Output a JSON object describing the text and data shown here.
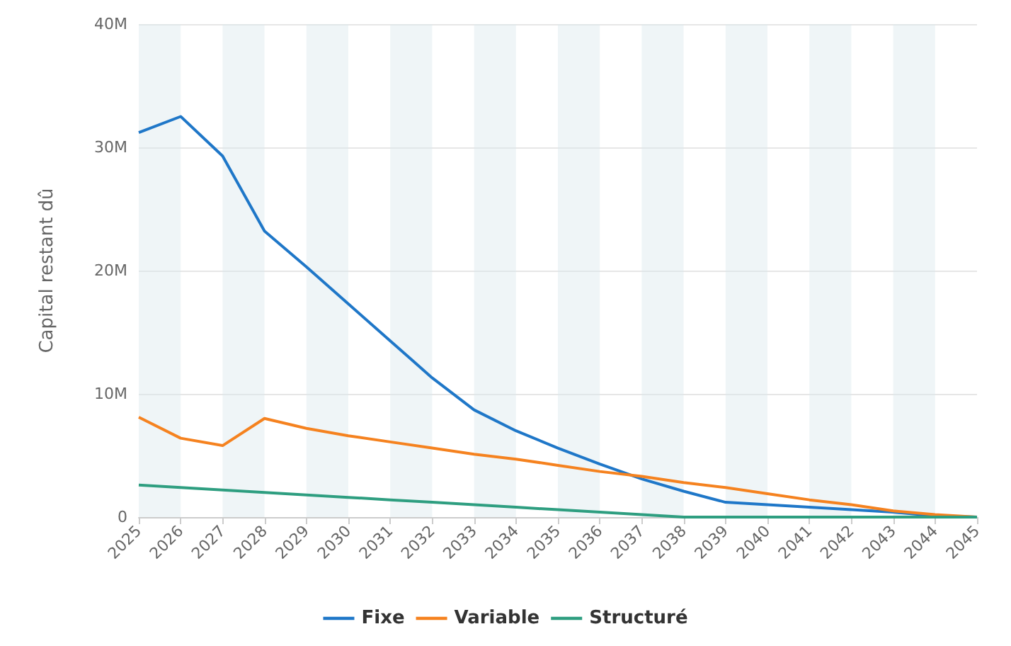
{
  "chart_data": {
    "type": "line",
    "ylabel": "Capital restant dû",
    "categories": [
      "2025",
      "2026",
      "2027",
      "2028",
      "2029",
      "2030",
      "2031",
      "2032",
      "2033",
      "2034",
      "2035",
      "2036",
      "2037",
      "2038",
      "2039",
      "2040",
      "2041",
      "2042",
      "2043",
      "2044",
      "2045"
    ],
    "series": [
      {
        "name": "Fixe",
        "color": "#1f77c8",
        "values": [
          31200000,
          32500000,
          29300000,
          23200000,
          20300000,
          17300000,
          14300000,
          11300000,
          8700000,
          7000000,
          5600000,
          4300000,
          3100000,
          2100000,
          1200000,
          1000000,
          800000,
          600000,
          400000,
          100000,
          0
        ]
      },
      {
        "name": "Variable",
        "color": "#f5821f",
        "values": [
          8100000,
          6400000,
          5800000,
          8000000,
          7200000,
          6600000,
          6100000,
          5600000,
          5100000,
          4700000,
          4200000,
          3700000,
          3300000,
          2800000,
          2400000,
          1900000,
          1400000,
          1000000,
          500000,
          200000,
          0
        ]
      },
      {
        "name": "Structuré",
        "color": "#2e9e80",
        "values": [
          2600000,
          2400000,
          2200000,
          2000000,
          1800000,
          1600000,
          1400000,
          1200000,
          1000000,
          800000,
          600000,
          400000,
          200000,
          0,
          0,
          0,
          0,
          0,
          0,
          0,
          0
        ]
      }
    ],
    "ylim": [
      0,
      40000000
    ],
    "yticks": [
      0,
      {
        "value": 10000000,
        "label": "10M"
      },
      {
        "value": 20000000,
        "label": "20M"
      },
      {
        "value": 30000000,
        "label": "30M"
      },
      {
        "value": 40000000,
        "label": "40M"
      }
    ],
    "bands": [
      {
        "axis": "x",
        "from": "2025",
        "to": "2026",
        "color": "#dce8ee"
      },
      {
        "axis": "x",
        "from": "2027",
        "to": "2028",
        "color": "#dce8ee"
      },
      {
        "axis": "x",
        "from": "2029",
        "to": "2030",
        "color": "#dce8ee"
      },
      {
        "axis": "x",
        "from": "2031",
        "to": "2032",
        "color": "#dce8ee"
      },
      {
        "axis": "x",
        "from": "2033",
        "to": "2034",
        "color": "#dce8ee"
      },
      {
        "axis": "x",
        "from": "2035",
        "to": "2036",
        "color": "#dce8ee"
      },
      {
        "axis": "x",
        "from": "2037",
        "to": "2038",
        "color": "#dce8ee"
      },
      {
        "axis": "x",
        "from": "2039",
        "to": "2040",
        "color": "#dce8ee"
      },
      {
        "axis": "x",
        "from": "2041",
        "to": "2042",
        "color": "#dce8ee"
      },
      {
        "axis": "x",
        "from": "2043",
        "to": "2044",
        "color": "#dce8ee"
      }
    ],
    "grid": "y",
    "legend": "bottom",
    "marker": "none",
    "line_style": "solid"
  }
}
